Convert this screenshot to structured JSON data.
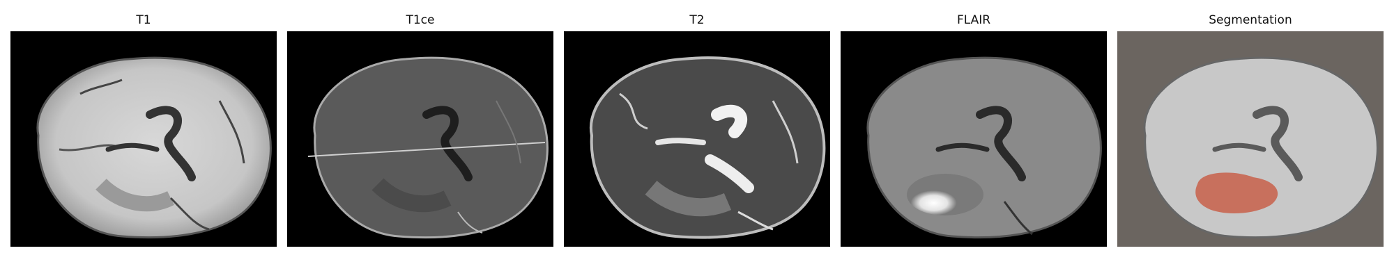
{
  "figure": {
    "panels": [
      {
        "title": "T1",
        "modality": "T1",
        "background": "#000000"
      },
      {
        "title": "T1ce",
        "modality": "T1ce",
        "background": "#000000"
      },
      {
        "title": "T2",
        "modality": "T2",
        "background": "#000000"
      },
      {
        "title": "FLAIR",
        "modality": "FLAIR",
        "background": "#000000"
      },
      {
        "title": "Segmentation",
        "modality": "overlay",
        "background": "#6b6560",
        "overlay_color": "#c8604a"
      }
    ]
  }
}
